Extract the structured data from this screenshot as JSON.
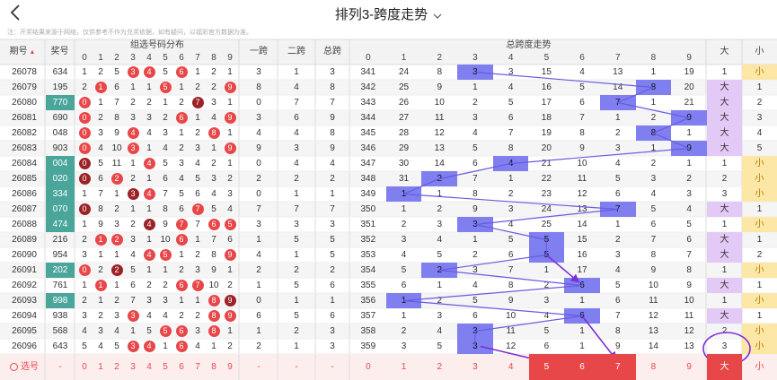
{
  "header": {
    "title": "排列3-跨度走势",
    "back_icon": "chevron-left-icon",
    "dropdown_icon": "chevron-down-icon",
    "note": "注：开奖结果来源于网络，仅供参考不作为兑奖依据，如有疑问，以福彩官方数据为准。"
  },
  "columns": {
    "issue": "期号",
    "award": "奖号",
    "group_dist": "组选号码分布",
    "one_span": "一跨",
    "two_span": "二跨",
    "total_span": "总跨",
    "span_trend": "总跨度走势",
    "big": "大",
    "small": "小",
    "digits": [
      "0",
      "1",
      "2",
      "3",
      "4",
      "5",
      "6",
      "7",
      "8",
      "9"
    ]
  },
  "rows": [
    {
      "issue": "26078",
      "award": "634",
      "dist": [
        "1",
        "2",
        "5",
        {
          "b": "3",
          "t": "r"
        },
        {
          "b": "4",
          "t": "r"
        },
        "5",
        {
          "b": "6",
          "t": "r"
        },
        "1",
        "2",
        "1"
      ],
      "one": "3",
      "two": "1",
      "total": "3",
      "trend": [
        "341",
        "24",
        "8",
        {
          "h": "3"
        },
        "3",
        "15",
        "4",
        "13",
        "1",
        "19"
      ],
      "bs": {
        "v": "1",
        "t": ""
      },
      "sm": {
        "v": "小",
        "t": "s"
      }
    },
    {
      "issue": "26079",
      "award": "195",
      "dist": [
        "2",
        {
          "b": "1",
          "t": "r"
        },
        "6",
        "1",
        "1",
        {
          "b": "5",
          "t": "r"
        },
        "1",
        "2",
        "2",
        {
          "b": "9",
          "t": "r"
        }
      ],
      "one": "8",
      "two": "4",
      "total": "8",
      "trend": [
        "342",
        "25",
        "9",
        "1",
        "4",
        "16",
        "5",
        "14",
        {
          "h": "8"
        },
        "20"
      ],
      "bs": {
        "v": "大",
        "t": "b"
      },
      "sm": {
        "v": "1",
        "t": ""
      }
    },
    {
      "issue": "26080",
      "award": "770",
      "awardhl": true,
      "dist": [
        {
          "b": "0",
          "t": "r"
        },
        "1",
        "7",
        "2",
        "2",
        "1",
        "2",
        {
          "b": "7",
          "t": "d"
        },
        "3",
        "1"
      ],
      "one": "0",
      "two": "7",
      "total": "7",
      "trend": [
        "343",
        "26",
        "10",
        "2",
        "5",
        "17",
        "6",
        {
          "h": "7"
        },
        "1",
        "21"
      ],
      "bs": {
        "v": "大",
        "t": "b"
      },
      "sm": {
        "v": "2",
        "t": ""
      }
    },
    {
      "issue": "26081",
      "award": "690",
      "dist": [
        {
          "b": "0",
          "t": "r"
        },
        "2",
        "8",
        "3",
        "3",
        "2",
        {
          "b": "6",
          "t": "r"
        },
        "1",
        "4",
        {
          "b": "9",
          "t": "r"
        }
      ],
      "one": "3",
      "two": "6",
      "total": "9",
      "trend": [
        "344",
        "27",
        "11",
        "3",
        "6",
        "18",
        "7",
        "1",
        "2",
        {
          "h": "9"
        }
      ],
      "bs": {
        "v": "大",
        "t": "b"
      },
      "sm": {
        "v": "3",
        "t": ""
      }
    },
    {
      "issue": "26082",
      "award": "048",
      "dist": [
        {
          "b": "0",
          "t": "r"
        },
        "3",
        "9",
        {
          "b": "4",
          "t": "r"
        },
        "4",
        "3",
        "1",
        "2",
        {
          "b": "8",
          "t": "r"
        },
        "1"
      ],
      "one": "4",
      "two": "4",
      "total": "8",
      "trend": [
        "345",
        "28",
        "12",
        "4",
        "7",
        "19",
        "8",
        "2",
        {
          "h": "8"
        },
        "1"
      ],
      "bs": {
        "v": "大",
        "t": "b"
      },
      "sm": {
        "v": "4",
        "t": ""
      }
    },
    {
      "issue": "26083",
      "award": "903",
      "dist": [
        {
          "b": "0",
          "t": "r"
        },
        "4",
        "10",
        {
          "b": "3",
          "t": "r"
        },
        "1",
        "4",
        "2",
        "3",
        "1",
        {
          "b": "9",
          "t": "r"
        }
      ],
      "one": "9",
      "two": "3",
      "total": "9",
      "trend": [
        "346",
        "29",
        "13",
        "5",
        "8",
        "20",
        "9",
        "3",
        "1",
        {
          "h": "9"
        }
      ],
      "bs": {
        "v": "大",
        "t": "b"
      },
      "sm": {
        "v": "5",
        "t": ""
      }
    },
    {
      "issue": "26084",
      "award": "004",
      "awardhl": true,
      "dist": [
        {
          "b": "0",
          "t": "d"
        },
        "5",
        "11",
        "1",
        {
          "b": "4",
          "t": "r"
        },
        "5",
        "3",
        "4",
        "2",
        "1"
      ],
      "one": "0",
      "two": "4",
      "total": "4",
      "trend": [
        "347",
        "30",
        "14",
        "6",
        {
          "h": "4"
        },
        "21",
        "10",
        "4",
        "2",
        "1"
      ],
      "bs": {
        "v": "1",
        "t": ""
      },
      "sm": {
        "v": "小",
        "t": "s"
      }
    },
    {
      "issue": "26085",
      "award": "020",
      "awardhl": true,
      "dist": [
        {
          "b": "0",
          "t": "d"
        },
        "6",
        {
          "b": "2",
          "t": "r"
        },
        "2",
        "1",
        "6",
        "4",
        "5",
        "3",
        "2"
      ],
      "one": "2",
      "two": "2",
      "total": "2",
      "trend": [
        "348",
        "31",
        {
          "h": "2"
        },
        "7",
        "1",
        "22",
        "11",
        "5",
        "3",
        "2"
      ],
      "bs": {
        "v": "2",
        "t": ""
      },
      "sm": {
        "v": "小",
        "t": "s"
      }
    },
    {
      "issue": "26086",
      "award": "334",
      "awardhl": true,
      "dist": [
        "1",
        "7",
        "1",
        {
          "b": "3",
          "t": "d"
        },
        {
          "b": "4",
          "t": "r"
        },
        "7",
        "5",
        "6",
        "4",
        "3"
      ],
      "one": "0",
      "two": "1",
      "total": "1",
      "trend": [
        "349",
        {
          "h": "1"
        },
        "1",
        "8",
        "2",
        "23",
        "12",
        "6",
        "4",
        "3"
      ],
      "bs": {
        "v": "3",
        "t": ""
      },
      "sm": {
        "v": "小",
        "t": "s"
      }
    },
    {
      "issue": "26087",
      "award": "070",
      "awardhl": true,
      "dist": [
        {
          "b": "0",
          "t": "d"
        },
        "8",
        "2",
        "1",
        "1",
        "8",
        "6",
        {
          "b": "7",
          "t": "r"
        },
        "5",
        "4"
      ],
      "one": "7",
      "two": "7",
      "total": "7",
      "trend": [
        "350",
        "1",
        "2",
        "9",
        "3",
        "24",
        "13",
        {
          "h": "7"
        },
        "5",
        "4"
      ],
      "bs": {
        "v": "大",
        "t": "b"
      },
      "sm": {
        "v": "1",
        "t": ""
      }
    },
    {
      "issue": "26088",
      "award": "474",
      "awardhl": true,
      "dist": [
        "1",
        "9",
        "3",
        "2",
        {
          "b": "4",
          "t": "d"
        },
        "9",
        {
          "b": "7",
          "t": "r"
        },
        "7",
        {
          "b": "6",
          "t": "r"
        },
        {
          "b": "5",
          "t": "r"
        }
      ],
      "one": "3",
      "two": "3",
      "total": "3",
      "trend": [
        "351",
        "2",
        "3",
        {
          "h": "3"
        },
        "4",
        "25",
        "14",
        "1",
        "6",
        "5"
      ],
      "bs": {
        "v": "1",
        "t": ""
      },
      "sm": {
        "v": "小",
        "t": "s"
      }
    },
    {
      "issue": "26089",
      "award": "216",
      "dist": [
        "2",
        {
          "b": "1",
          "t": "r"
        },
        {
          "b": "2",
          "t": "r"
        },
        "3",
        "1",
        "10",
        {
          "b": "6",
          "t": "r"
        },
        "1",
        "7",
        "6"
      ],
      "one": "1",
      "two": "5",
      "total": "5",
      "trend": [
        "352",
        "3",
        "4",
        "1",
        "5",
        {
          "h": "5"
        },
        "15",
        "2",
        "7",
        "6"
      ],
      "bs": {
        "v": "大",
        "t": "b"
      },
      "sm": {
        "v": "1",
        "t": ""
      }
    },
    {
      "issue": "26090",
      "award": "954",
      "dist": [
        "3",
        "1",
        "1",
        "4",
        {
          "b": "4",
          "t": "r"
        },
        {
          "b": "5",
          "t": "r"
        },
        "1",
        "2",
        "8",
        {
          "b": "9",
          "t": "r"
        }
      ],
      "one": "4",
      "two": "1",
      "total": "5",
      "trend": [
        "353",
        "4",
        "5",
        "2",
        "6",
        {
          "h": "5"
        },
        "16",
        "3",
        "8",
        "7"
      ],
      "bs": {
        "v": "大",
        "t": "b"
      },
      "sm": {
        "v": "2",
        "t": ""
      }
    },
    {
      "issue": "26091",
      "award": "202",
      "awardhl": true,
      "dist": [
        {
          "b": "0",
          "t": "r"
        },
        "2",
        {
          "b": "2",
          "t": "d"
        },
        "5",
        "1",
        "1",
        "2",
        "3",
        "9",
        "1"
      ],
      "one": "2",
      "two": "2",
      "total": "2",
      "trend": [
        "354",
        "5",
        {
          "h": "2"
        },
        "3",
        "7",
        "1",
        "17",
        "4",
        "9",
        "8"
      ],
      "bs": {
        "v": "1",
        "t": ""
      },
      "sm": {
        "v": "小",
        "t": "s"
      }
    },
    {
      "issue": "26092",
      "award": "761",
      "dist": [
        "1",
        {
          "b": "1",
          "t": "r"
        },
        "1",
        "6",
        "2",
        "2",
        {
          "b": "6",
          "t": "r"
        },
        {
          "b": "7",
          "t": "r"
        },
        "10",
        "2"
      ],
      "one": "1",
      "two": "5",
      "total": "6",
      "trend": [
        "355",
        "6",
        "1",
        "4",
        "8",
        "2",
        {
          "h": "6"
        },
        "5",
        "10",
        "9"
      ],
      "bs": {
        "v": "大",
        "t": "b"
      },
      "sm": {
        "v": "1",
        "t": ""
      }
    },
    {
      "issue": "26093",
      "award": "998",
      "awardhl": true,
      "dist": [
        "2",
        "1",
        "2",
        "7",
        "3",
        "3",
        "1",
        "1",
        {
          "b": "8",
          "t": "r"
        },
        {
          "b": "9",
          "t": "d"
        }
      ],
      "one": "0",
      "two": "1",
      "total": "1",
      "trend": [
        "356",
        {
          "h": "1"
        },
        "2",
        "5",
        "9",
        "3",
        "1",
        "6",
        "11",
        "10"
      ],
      "bs": {
        "v": "1",
        "t": ""
      },
      "sm": {
        "v": "小",
        "t": "s"
      }
    },
    {
      "issue": "26094",
      "award": "938",
      "dist": [
        "3",
        "2",
        "3",
        {
          "b": "3",
          "t": "r"
        },
        "4",
        "4",
        "2",
        "2",
        {
          "b": "8",
          "t": "r"
        },
        {
          "b": "9",
          "t": "r"
        }
      ],
      "one": "6",
      "two": "5",
      "total": "6",
      "trend": [
        "357",
        "1",
        "3",
        "6",
        "10",
        "4",
        {
          "h": "6"
        },
        "7",
        "12",
        "11"
      ],
      "bs": {
        "v": "大",
        "t": "b"
      },
      "sm": {
        "v": "1",
        "t": ""
      }
    },
    {
      "issue": "26095",
      "award": "568",
      "dist": [
        "4",
        "3",
        "4",
        "1",
        "5",
        {
          "b": "5",
          "t": "r"
        },
        {
          "b": "6",
          "t": "r"
        },
        "3",
        {
          "b": "8",
          "t": "r"
        },
        "1"
      ],
      "one": "1",
      "two": "2",
      "total": "3",
      "trend": [
        "358",
        "2",
        "4",
        {
          "h": "3"
        },
        "11",
        "5",
        "1",
        "8",
        "13",
        "12"
      ],
      "bs": {
        "v": "2",
        "t": ""
      },
      "sm": {
        "v": "小",
        "t": "s"
      }
    },
    {
      "issue": "26096",
      "award": "643",
      "dist": [
        "5",
        "4",
        "5",
        {
          "b": "3",
          "t": "r"
        },
        {
          "b": "4",
          "t": "r"
        },
        "1",
        {
          "b": "6",
          "t": "r"
        },
        "4",
        "1",
        "2"
      ],
      "one": "2",
      "two": "1",
      "total": "3",
      "trend": [
        "359",
        "3",
        "5",
        {
          "h": "3"
        },
        "12",
        "6",
        "1",
        "9",
        "14",
        "13"
      ],
      "bs": {
        "v": "3",
        "t": ""
      },
      "sm": {
        "v": "小",
        "t": "s"
      }
    }
  ],
  "select_row": {
    "label": "选号",
    "award": "-",
    "digits": [
      "0",
      "1",
      "2",
      "3",
      "4",
      "5",
      "6",
      "7",
      "8",
      "9"
    ],
    "one": "-",
    "two": "-",
    "total": "-",
    "trend": [
      "0",
      "1",
      "2",
      "3",
      "4",
      "5",
      "6",
      "7",
      "8",
      "9"
    ],
    "big": "大",
    "small": "小"
  },
  "colors": {
    "ball_red": "#e8474a",
    "ball_dark": "#9b2226",
    "trend_highlight": "#7f7ff0",
    "big_bg": "#e3c9f5",
    "small_bg": "#fde7a6",
    "award_highlight": "#4aa59b",
    "annotation": "#7b2fd6"
  }
}
